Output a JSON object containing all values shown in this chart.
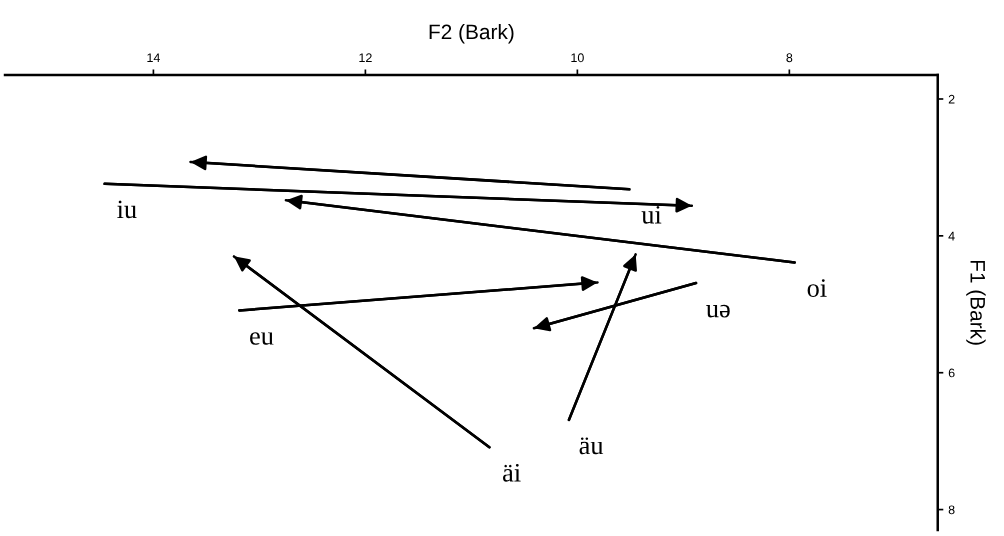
{
  "chart_data": {
    "type": "line",
    "xlabel": "F2 (Bark)",
    "ylabel": "F1 (Bark)",
    "xlim": [
      15.4,
      6.6
    ],
    "xticks": [
      14,
      12,
      10,
      8
    ],
    "ylim": [
      8.3,
      1.65
    ],
    "yticks": [
      2,
      4,
      6,
      8
    ],
    "grid": false,
    "series": [
      {
        "name": "ui",
        "color": "#000000",
        "x": [
          9.51,
          13.65
        ],
        "values": [
          3.32,
          2.92
        ]
      },
      {
        "name": "iu",
        "color": "#000000",
        "x": [
          14.46,
          8.92
        ],
        "values": [
          3.24,
          3.56
        ]
      },
      {
        "name": "oi",
        "color": "#000000",
        "x": [
          7.95,
          12.75
        ],
        "values": [
          4.39,
          3.48
        ]
      },
      {
        "name": "eu",
        "color": "#000000",
        "x": [
          13.19,
          9.81
        ],
        "values": [
          5.09,
          4.68
        ]
      },
      {
        "name": "uə",
        "color": "#000000",
        "x": [
          8.88,
          10.41
        ],
        "values": [
          4.69,
          5.35
        ]
      },
      {
        "name": "äi",
        "color": "#000000",
        "x": [
          10.83,
          13.24
        ],
        "values": [
          7.09,
          4.3
        ]
      },
      {
        "name": "äu",
        "color": "#000000",
        "x": [
          10.08,
          9.45
        ],
        "values": [
          6.69,
          4.27
        ]
      }
    ]
  }
}
